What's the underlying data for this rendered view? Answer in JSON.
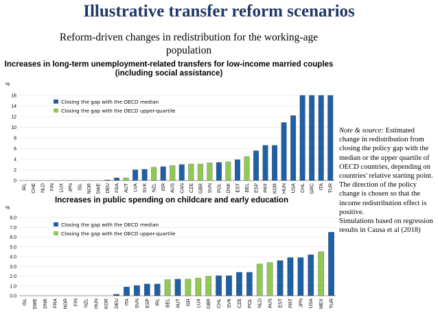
{
  "slide": {
    "title": "Illustrative transfer reform scenarios",
    "subtitle": "Reform-driven changes in redistribution for the working-age population"
  },
  "note": {
    "label": "Note & source:",
    "lines": [
      "Estimated change in redistribution from closing the policy gap with the median or the upper quartile of OECD countries, depending on countries' relative starting point. The direction of the policy change is chosen so that the income redistribution effect is",
      "positive.",
      "Simulations based on regression results in Causa et al (2018)"
    ]
  },
  "colors": {
    "median": "#1f5fa6",
    "upper": "#92c954",
    "grid": "#d9d9d9"
  },
  "chart_data": [
    {
      "type": "bar",
      "title": "Increases in long-term unemployment-related transfers for low-income married couples (including social assistance)",
      "ylabel": "%",
      "ylim": [
        0,
        16
      ],
      "yticks": [
        0,
        2,
        4,
        6,
        8,
        10,
        12,
        14,
        16
      ],
      "legend": [
        "Closing the gap with the OECD median",
        "Closing the gap with the OECD upper-quartile"
      ],
      "categories": [
        "IRL",
        "CHE",
        "NLD",
        "FIN",
        "LUX",
        "JPN",
        "ISL",
        "NOR",
        "SWE",
        "DEU",
        "FRA",
        "AUT",
        "LVA",
        "SVK",
        "NZL",
        "ISR",
        "AUS",
        "CAN",
        "CZE",
        "GBR",
        "SVN",
        "POL",
        "DNK",
        "EST",
        "BEL",
        "ESP",
        "PRT",
        "KOR",
        "HUN",
        "USA",
        "CHL",
        "GRC",
        "ITA",
        "TUR"
      ],
      "values": [
        0,
        0,
        0,
        0,
        0,
        0,
        0,
        0,
        0,
        0.1,
        0.5,
        0.5,
        2.0,
        2.1,
        2.5,
        2.6,
        2.8,
        3.0,
        3.1,
        3.1,
        3.3,
        3.4,
        3.5,
        3.9,
        4.5,
        5.6,
        6.6,
        6.6,
        10.9,
        12.2,
        16.5,
        16.5,
        16.5,
        16.5
      ],
      "series": [
        "m",
        "m",
        "m",
        "m",
        "m",
        "m",
        "m",
        "m",
        "m",
        "m",
        "m",
        "u",
        "m",
        "m",
        "u",
        "m",
        "u",
        "m",
        "u",
        "u",
        "u",
        "m",
        "u",
        "m",
        "u",
        "m",
        "m",
        "m",
        "m",
        "m",
        "m",
        "m",
        "m",
        "m"
      ]
    },
    {
      "type": "bar",
      "title": "Increases in public spending on childcare and early education",
      "ylabel": "%",
      "ylim": [
        0,
        8
      ],
      "yticks": [
        "0.0",
        "1.0",
        "2.0",
        "3.0",
        "4.0",
        "5.0",
        "6.0",
        "7.0",
        "8.0"
      ],
      "legend": [
        "Closing the gap with the OECD median",
        "Closing the gap with the OECD upper-quartile"
      ],
      "categories": [
        "ISL",
        "SWE",
        "DNK",
        "FRA",
        "NOR",
        "FIN",
        "NZL",
        "HUN",
        "KOR",
        "DEU",
        "ITA",
        "SVN",
        "ESP",
        "IRL",
        "BEL",
        "AUT",
        "ISR",
        "LUX",
        "GBR",
        "CHL",
        "SVK",
        "CZE",
        "POL",
        "NLD",
        "AUS",
        "EST",
        "PRT",
        "JPN",
        "USA",
        "MEX",
        "TUR"
      ],
      "values": [
        0,
        0,
        0,
        0,
        0,
        0,
        0,
        0,
        0,
        0.15,
        0.9,
        1.05,
        1.2,
        1.2,
        1.65,
        1.7,
        1.7,
        1.8,
        2.0,
        2.05,
        2.05,
        2.4,
        2.4,
        3.25,
        3.4,
        3.6,
        3.9,
        3.9,
        4.2,
        4.5,
        6.5
      ],
      "series": [
        "m",
        "m",
        "m",
        "m",
        "m",
        "m",
        "m",
        "m",
        "m",
        "m",
        "m",
        "m",
        "m",
        "m",
        "u",
        "m",
        "u",
        "u",
        "u",
        "m",
        "m",
        "m",
        "m",
        "u",
        "u",
        "m",
        "m",
        "m",
        "m",
        "u",
        "m"
      ]
    }
  ]
}
